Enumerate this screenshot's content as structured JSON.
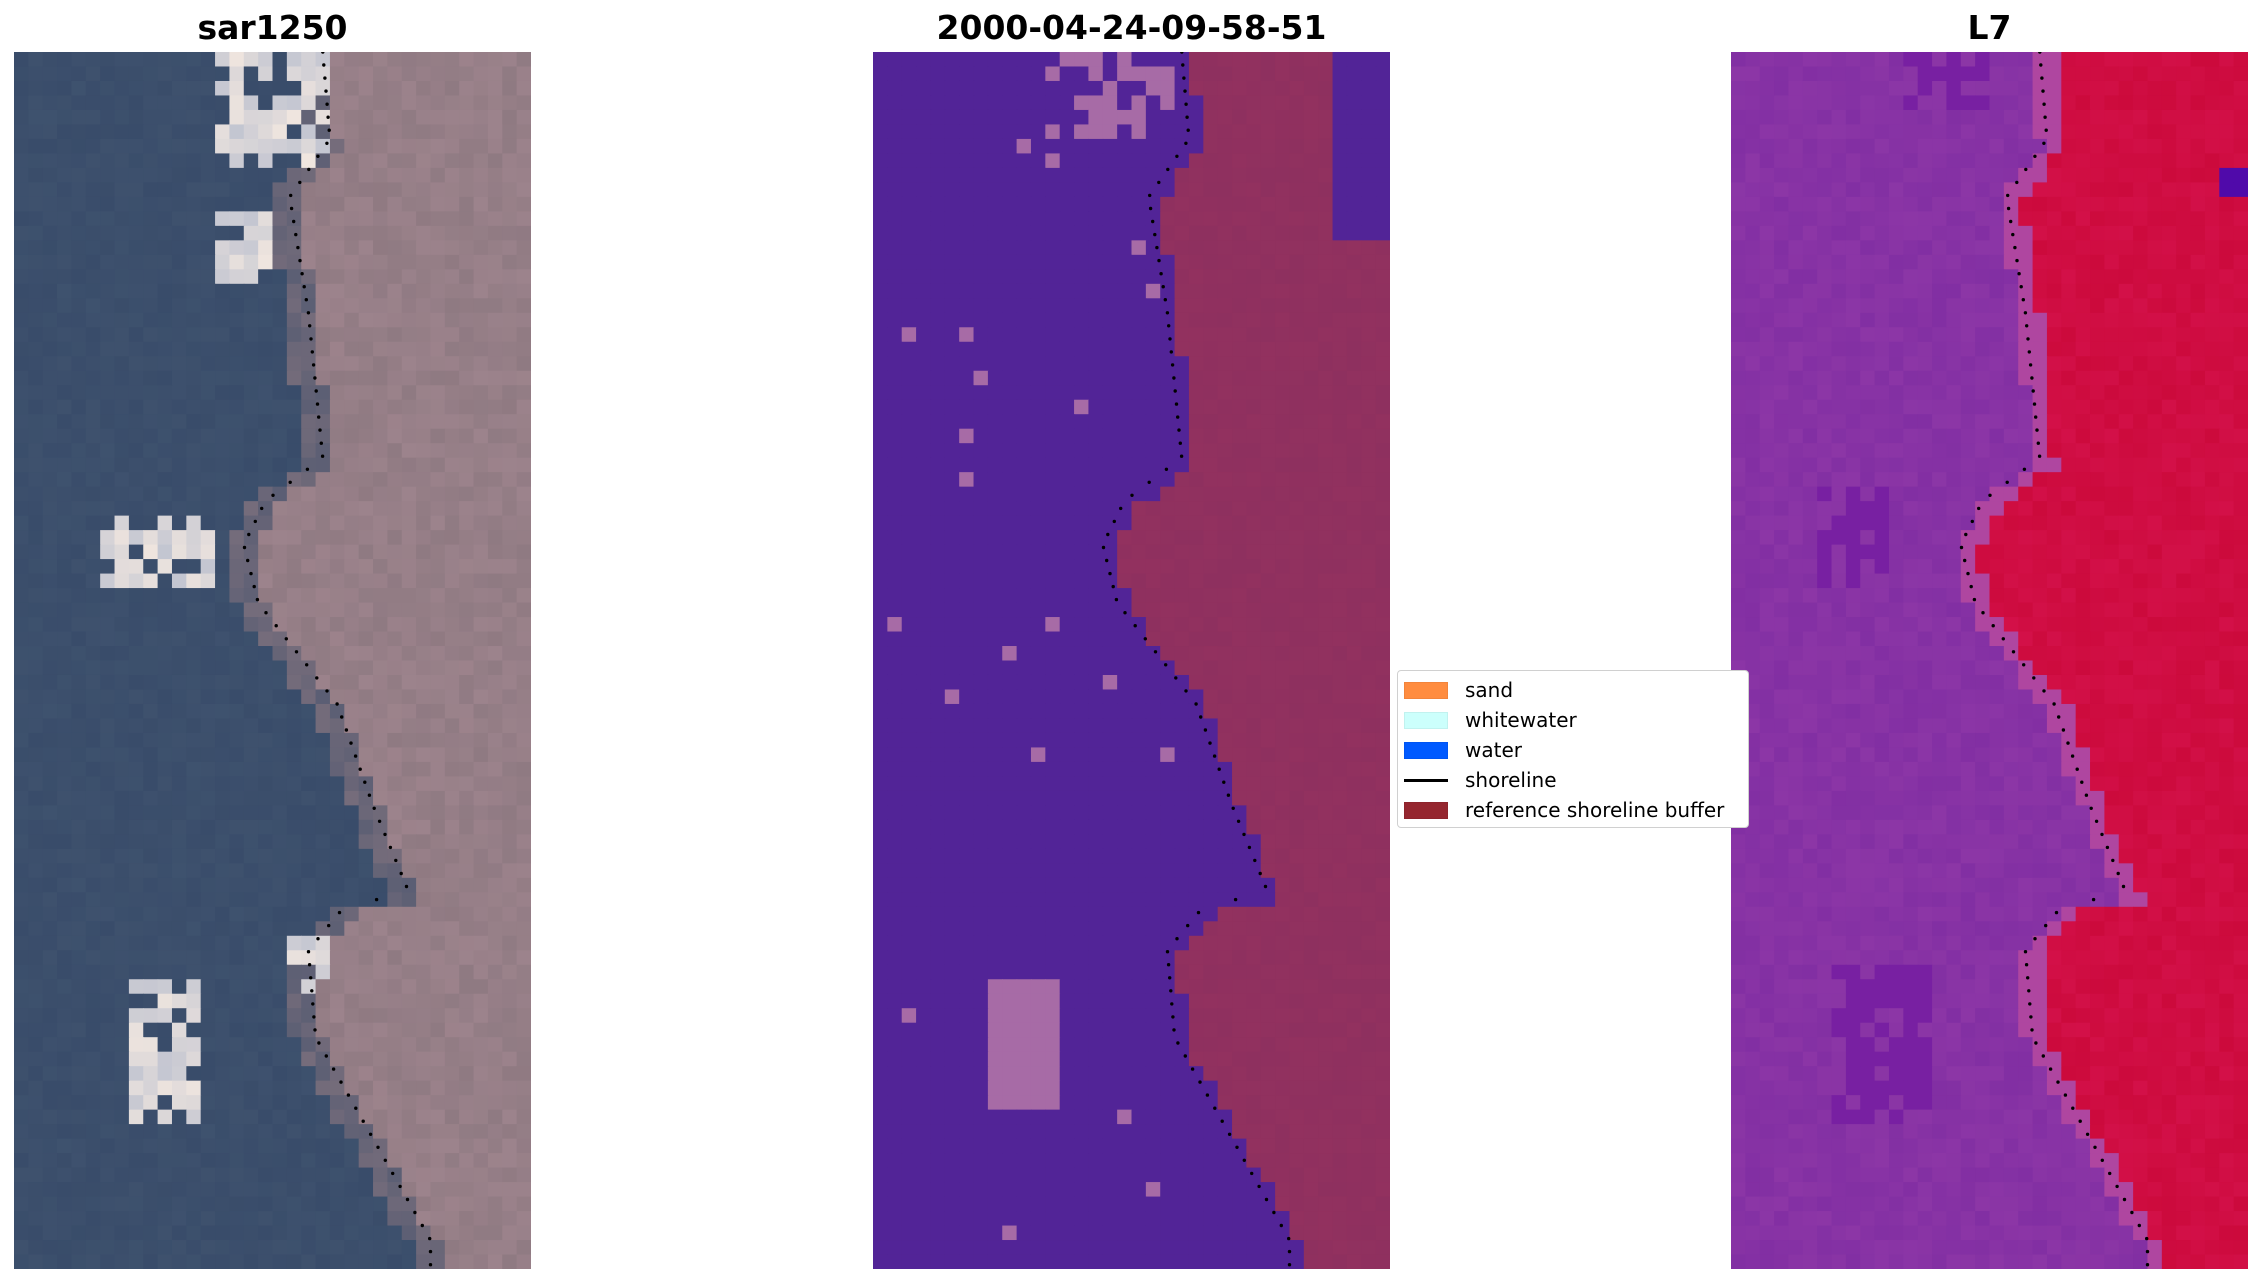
{
  "panels": [
    {
      "title": "sar1250",
      "colors": {
        "water": "#394c6a",
        "land": "#8f7a82",
        "accent": "#f0e6df"
      }
    },
    {
      "title": "2000-04-24-09-58-51",
      "colors": {
        "water": "#522497",
        "land": "#8e305f",
        "accent": "#a76ba6"
      }
    },
    {
      "title": "L7",
      "colors": {
        "water": "#8c36a6",
        "land": "#cc0a3c",
        "accent": "#6b12a0"
      }
    }
  ],
  "legend": {
    "items": [
      {
        "label": "sand",
        "color": "#ff8c3f"
      },
      {
        "label": "whitewater",
        "color": "#ccfffc"
      },
      {
        "label": "water",
        "color": "#005aff"
      },
      {
        "label": "shoreline",
        "color": "#000000"
      },
      {
        "label": "reference shoreline buffer",
        "color": "#95262f"
      }
    ]
  }
}
